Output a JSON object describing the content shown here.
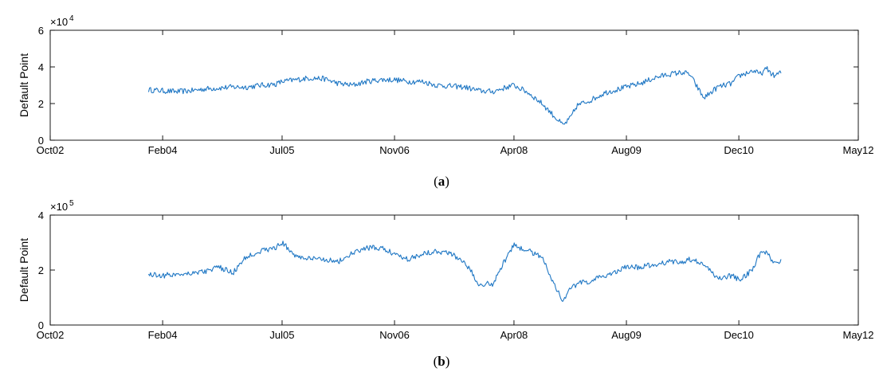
{
  "chart_data": [
    {
      "id": "a",
      "type": "line",
      "caption": {
        "pre": "(",
        "letter": "a",
        "post": ")"
      },
      "ylabel": "Default Point",
      "exponent_label": "10",
      "exponent_power": "4",
      "ylim": [
        0,
        6
      ],
      "yticks": [
        "0",
        "2",
        "4",
        "6"
      ],
      "x_tick_labels": [
        "Oct02",
        "Feb04",
        "Jul05",
        "Nov06",
        "Apr08",
        "Aug09",
        "Dec10",
        "May12"
      ],
      "series": [
        {
          "color": "#1f77c4",
          "x": [
            "Dec03",
            "Feb04",
            "Apr04",
            "Jun04",
            "Aug04",
            "Oct04",
            "Dec04",
            "Feb05",
            "Apr05",
            "Jun05",
            "Jul05",
            "Sep05",
            "Nov05",
            "Jan06",
            "Mar06",
            "May06",
            "Jul06",
            "Sep06",
            "Nov06",
            "Jan07",
            "Mar07",
            "May07",
            "Jul07",
            "Sep07",
            "Nov07",
            "Jan08",
            "Mar08",
            "Apr08",
            "Jun08",
            "Aug08",
            "Oct08",
            "Nov08",
            "Dec08",
            "Jan09",
            "Mar09",
            "May09",
            "Jul09",
            "Aug09",
            "Oct09",
            "Dec09",
            "Feb10",
            "Apr10",
            "May10",
            "Jul10",
            "Sep10",
            "Nov10",
            "Dec10",
            "Feb11",
            "Mar11",
            "Apr11",
            "May11",
            "Jun11"
          ],
          "values": [
            2.75,
            2.7,
            2.65,
            2.7,
            2.8,
            2.85,
            2.9,
            2.9,
            3.0,
            3.05,
            3.2,
            3.3,
            3.4,
            3.35,
            3.1,
            3.0,
            3.2,
            3.3,
            3.3,
            3.2,
            3.2,
            3.0,
            2.95,
            2.9,
            2.7,
            2.65,
            2.9,
            3.0,
            2.6,
            2.0,
            1.2,
            0.8,
            1.2,
            1.9,
            2.2,
            2.6,
            2.8,
            2.9,
            3.1,
            3.4,
            3.6,
            3.7,
            3.6,
            2.3,
            2.9,
            3.1,
            3.5,
            3.8,
            3.6,
            3.9,
            3.5,
            3.7
          ]
        }
      ]
    },
    {
      "id": "b",
      "type": "line",
      "caption": {
        "pre": "(",
        "letter": "b",
        "post": ")"
      },
      "ylabel": "Default Point",
      "exponent_label": "10",
      "exponent_power": "5",
      "ylim": [
        0,
        4
      ],
      "yticks": [
        "0",
        "2",
        "4"
      ],
      "x_tick_labels": [
        "Oct02",
        "Feb04",
        "Jul05",
        "Nov06",
        "Apr08",
        "Aug09",
        "Dec10",
        "May12"
      ],
      "series": [
        {
          "color": "#1f77c4",
          "x": [
            "Dec03",
            "Feb04",
            "Apr04",
            "Jun04",
            "Aug04",
            "Oct04",
            "Dec04",
            "Feb05",
            "Apr05",
            "Jun05",
            "Jul05",
            "Sep05",
            "Nov05",
            "Jan06",
            "Mar06",
            "May06",
            "Jul06",
            "Sep06",
            "Nov06",
            "Jan07",
            "Mar07",
            "May07",
            "Jul07",
            "Sep07",
            "Nov07",
            "Jan08",
            "Mar08",
            "Apr08",
            "Jun08",
            "Aug08",
            "Oct08",
            "Nov08",
            "Dec08",
            "Jan09",
            "Mar09",
            "May09",
            "Jul09",
            "Aug09",
            "Oct09",
            "Dec09",
            "Feb10",
            "Apr10",
            "May10",
            "Jul10",
            "Sep10",
            "Nov10",
            "Dec10",
            "Feb11",
            "Mar11",
            "Apr11",
            "May11",
            "Jun11"
          ],
          "values": [
            1.85,
            1.8,
            1.85,
            1.9,
            1.95,
            2.1,
            1.9,
            2.5,
            2.7,
            2.8,
            3.0,
            2.5,
            2.4,
            2.4,
            2.3,
            2.6,
            2.8,
            2.8,
            2.6,
            2.4,
            2.6,
            2.7,
            2.6,
            2.3,
            1.5,
            1.5,
            2.5,
            2.9,
            2.7,
            2.5,
            1.3,
            0.9,
            1.3,
            1.5,
            1.6,
            1.8,
            2.0,
            2.1,
            2.1,
            2.2,
            2.3,
            2.3,
            2.4,
            2.2,
            1.7,
            1.8,
            1.65,
            2.0,
            2.6,
            2.6,
            2.3,
            2.3
          ]
        }
      ]
    }
  ]
}
